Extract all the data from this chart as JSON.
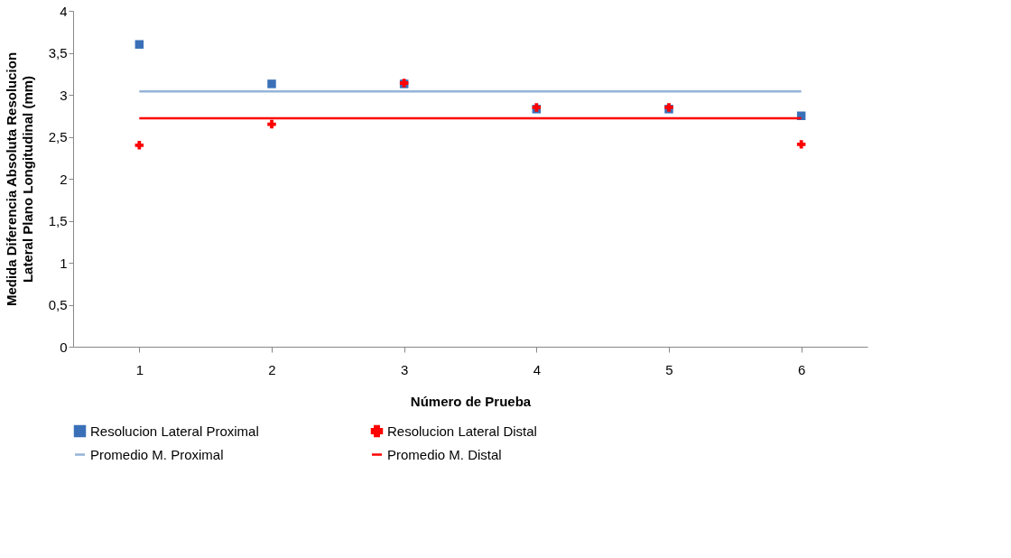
{
  "chart_data": {
    "type": "scatter",
    "xlabel": "Número de Prueba",
    "ylabel": "Medida Diferencia Absoluta Resolucion Lateral Plano Longitudinal (mm)",
    "categories": [
      "1",
      "2",
      "3",
      "4",
      "5",
      "6"
    ],
    "ylim": [
      0,
      4
    ],
    "yticks": [
      0,
      {
        "value": 0.5,
        "label": "0,5"
      },
      1,
      {
        "value": 1.5,
        "label": "1,5"
      },
      2,
      {
        "value": 2.5,
        "label": "2,5"
      },
      3,
      {
        "value": 3.5,
        "label": "3,5"
      },
      4
    ],
    "grid": false,
    "legend": "bottom",
    "series": [
      {
        "name": "Resolucion Lateral Proximal",
        "color": "#3a70b8",
        "marker": "square",
        "values": [
          3.6,
          3.13,
          3.13,
          2.83,
          2.83,
          2.75
        ]
      },
      {
        "name": "Resolucion Lateral Distal",
        "color": "#ff0000",
        "marker": "cross",
        "values": [
          2.4,
          2.65,
          3.14,
          2.85,
          2.85,
          2.41
        ]
      },
      {
        "name": "Promedio  M. Proximal",
        "type": "line",
        "color": "#95b3d7",
        "marker": "none",
        "values": [
          3.04,
          3.04,
          3.04,
          3.04,
          3.04,
          3.04
        ]
      },
      {
        "name": "Promedio  M. Distal",
        "type": "line",
        "color": "#ff0000",
        "marker": "none",
        "values": [
          2.72,
          2.72,
          2.72,
          2.72,
          2.72,
          2.72
        ]
      }
    ]
  }
}
